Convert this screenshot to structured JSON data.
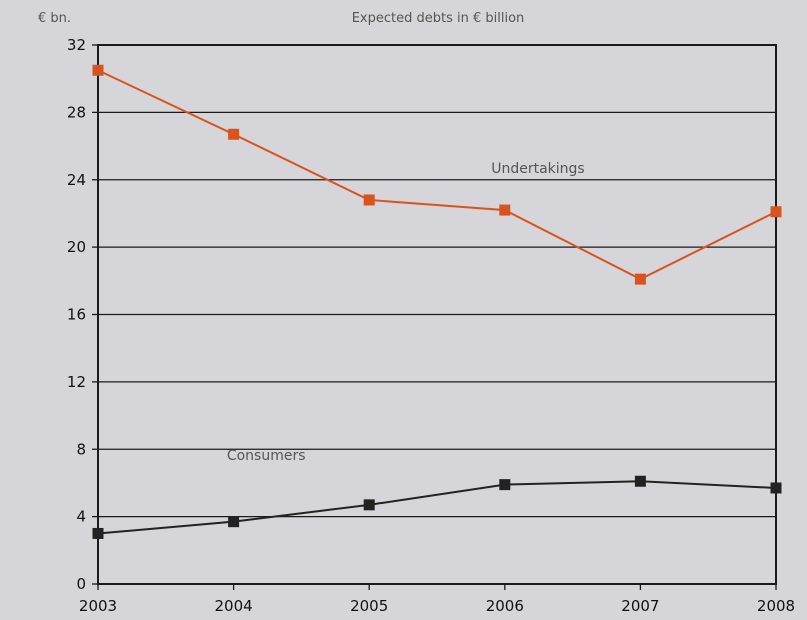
{
  "chart_data": {
    "type": "line",
    "title": "Expected debts in € billion",
    "ylabel": "€ bn.",
    "xlabel": "",
    "categories": [
      "2003",
      "2004",
      "2005",
      "2006",
      "2007",
      "2008"
    ],
    "yticks": [
      "0",
      "4",
      "8",
      "12",
      "16",
      "20",
      "24",
      "28",
      "32"
    ],
    "ylim": [
      0,
      32
    ],
    "grid": true,
    "series": [
      {
        "name": "Undertakings",
        "color": "#d9531e",
        "values": [
          30.5,
          26.7,
          22.8,
          22.2,
          18.1,
          22.1
        ]
      },
      {
        "name": "Consumers",
        "color": "#222222",
        "values": [
          3.0,
          3.7,
          4.7,
          5.9,
          6.1,
          5.7
        ]
      }
    ],
    "background_color": "#d6d5d9"
  }
}
